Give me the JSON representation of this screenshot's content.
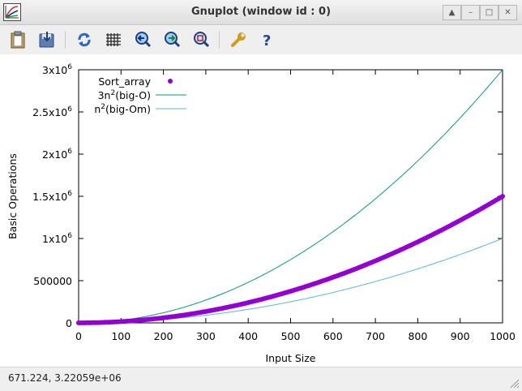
{
  "window": {
    "title": "Gnuplot (window id : 0)",
    "buttons": [
      "up-icon",
      "minimize-icon",
      "maximize-icon",
      "close-icon"
    ]
  },
  "toolbar": {
    "icons": [
      "clipboard-icon",
      "export-icon",
      "replot-icon",
      "grid-icon",
      "zoom-previous-icon",
      "zoom-next-icon",
      "unzoom-icon",
      "options-icon",
      "help-icon"
    ]
  },
  "statusbar": {
    "coords": "671.224,  3.22059e+06"
  },
  "colors": {
    "series1": "#9400d3",
    "series2": "#009e73",
    "series3": "#56b4e9"
  },
  "chart_data": {
    "type": "scatter",
    "title": "",
    "xlabel": "Input Size",
    "ylabel": "Basic Operations",
    "xlim": [
      0,
      1000
    ],
    "ylim": [
      0,
      3000000
    ],
    "xticks": [
      "0",
      "100",
      "200",
      "300",
      "400",
      "500",
      "600",
      "700",
      "800",
      "900",
      "1000"
    ],
    "yticks": [
      {
        "value": 0,
        "base": "0",
        "exp": ""
      },
      {
        "value": 500000,
        "base": "500000",
        "exp": ""
      },
      {
        "value": 1000000,
        "base": "1x10",
        "exp": "6"
      },
      {
        "value": 1500000,
        "base": "1.5x10",
        "exp": "6"
      },
      {
        "value": 2000000,
        "base": "2x10",
        "exp": "6"
      },
      {
        "value": 2500000,
        "base": "2.5x10",
        "exp": "6"
      },
      {
        "value": 3000000,
        "base": "3x10",
        "exp": "6"
      }
    ],
    "legend_position": "top-left",
    "series": [
      {
        "name": "Sort_array",
        "style": "points",
        "x_start": 0,
        "x_end": 1000,
        "x_step": 5,
        "function": "n*(n-1)*1.5/1 /1",
        "coefficient": 1.5
      },
      {
        "name_base": "3n",
        "name_sup": "2",
        "name_rest": "(big-O)",
        "style": "line",
        "coefficient": 3
      },
      {
        "name_base": "n",
        "name_sup": "2",
        "name_rest": "(big-Om)",
        "style": "line",
        "coefficient": 1
      }
    ]
  }
}
